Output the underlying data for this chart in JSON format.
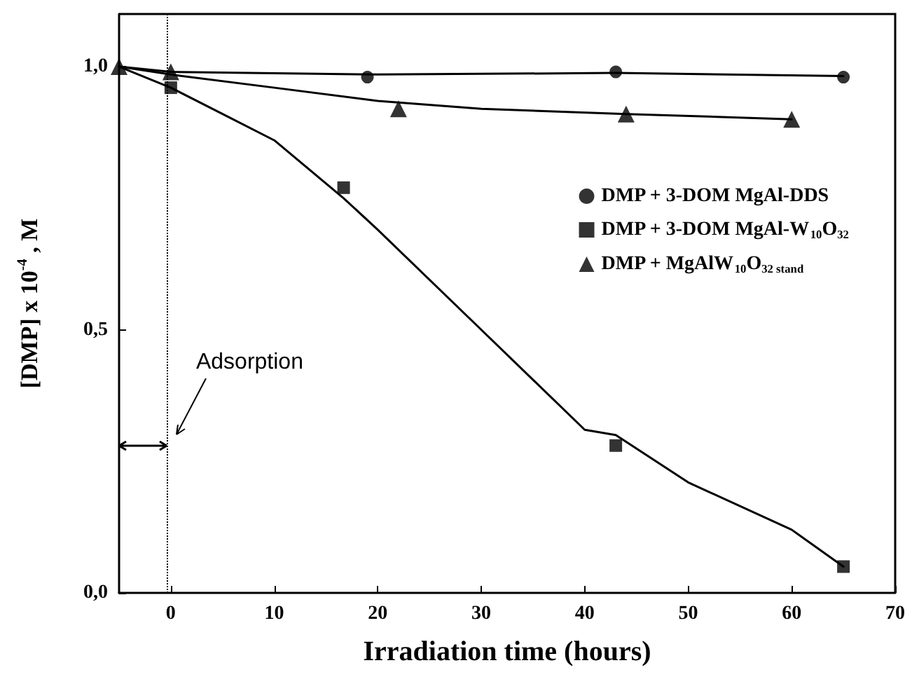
{
  "chart_data": {
    "type": "scatter",
    "xlabel": "Irradiation time (hours)",
    "ylabel": "[DMP] x 10$^{-4}$ , M",
    "xlim": [
      -5,
      70
    ],
    "xticks": [
      0,
      10,
      20,
      30,
      40,
      50,
      60,
      70
    ],
    "ylim": [
      0,
      1.1
    ],
    "yticks": [
      {
        "value": 0,
        "label": "0,0"
      },
      {
        "value": 0.5,
        "label": "0,5"
      },
      {
        "value": 1,
        "label": "1,0"
      }
    ],
    "grid": false,
    "legend": "top right",
    "series": [
      {
        "name": "DMP + 3-DOM MgAl-DDS",
        "color": "#000000",
        "marker": "circle",
        "x": [
          19,
          43,
          65
        ],
        "values": [
          0.98,
          0.99,
          0.98
        ]
      },
      {
        "name": "DMP + 3-DOM MgAl-W$_{10}$O$_{32}$",
        "color": "#000000",
        "marker": "square",
        "x": [
          0,
          16.7,
          43,
          65
        ],
        "values": [
          0.96,
          0.77,
          0.28,
          0.05
        ]
      },
      {
        "name": "DMP + MgAlW$_{10}$O$_{32 stand}$",
        "color": "#000000",
        "marker": "triangle",
        "x": [
          -5,
          0,
          22,
          44,
          60
        ],
        "values": [
          1.0,
          0.99,
          0.92,
          0.91,
          0.9
        ]
      },
      {
        "type": "line",
        "color": "#000000",
        "marker": "none",
        "x": [
          -5,
          0,
          20,
          43,
          65
        ],
        "values": [
          1.0,
          0.99,
          0.985,
          0.988,
          0.982
        ]
      },
      {
        "type": "line",
        "color": "#000000",
        "marker": "none",
        "x": [
          -5,
          0,
          5,
          10,
          16.7,
          20,
          30,
          40,
          43,
          50,
          60,
          65
        ],
        "values": [
          1.0,
          0.96,
          0.91,
          0.86,
          0.75,
          0.69,
          0.5,
          0.31,
          0.3,
          0.21,
          0.12,
          0.05
        ]
      },
      {
        "type": "line",
        "color": "#000000",
        "marker": "none",
        "x": [
          -5,
          0,
          10,
          20,
          30,
          44,
          60
        ],
        "values": [
          1.0,
          0.985,
          0.96,
          0.935,
          0.92,
          0.91,
          0.9
        ]
      }
    ],
    "ref_lines": [
      {
        "axis": "x",
        "value": -0.4,
        "line_style": "dotted",
        "color": "#000000"
      }
    ],
    "annotations": [
      "Adsorption"
    ]
  }
}
